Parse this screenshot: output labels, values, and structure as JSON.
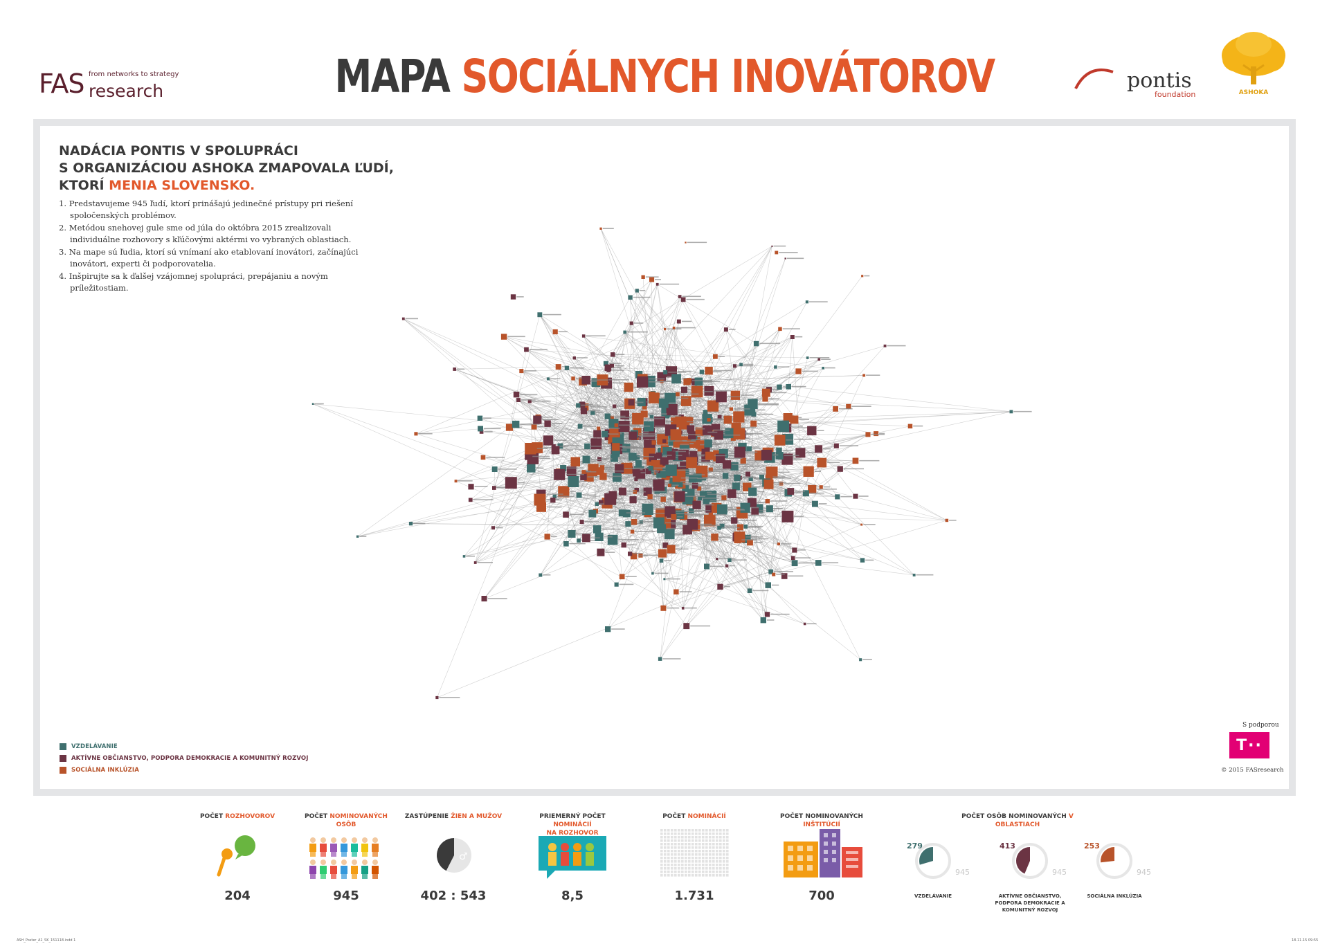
{
  "header": {
    "fas_main": "FAS",
    "fas_research": "research",
    "fas_tagline": "from networks to strategy",
    "title_part1": "MAPA ",
    "title_part2": "SOCIÁLNYCH INOVÁTOROV",
    "pontis_word": "pontis",
    "pontis_sub": "foundation",
    "ashoka_word": "ASHOKA"
  },
  "intro": {
    "line1": "NADÁCIA PONTIS V SPOLUPRÁCI",
    "line2": "S ORGANIZÁCIOU ASHOKA ZMAPOVALA ĽUDÍ,",
    "line3_prefix": "KTORÍ ",
    "line3_accent": "MENIA SLOVENSKO.",
    "points": [
      "1. Predstavujeme 945 ľudí, ktorí prinášajú jedinečné prístupy pri riešení spoločenských problémov.",
      "2. Metódou snehovej gule sme od júla do októbra 2015 zrealizovali individuálne rozhovory s kľúčovými aktérmi vo vybraných oblastiach.",
      "3. Na mape sú ľudia, ktorí sú vnímaní ako etablovaní inovátori, začínajúci inovátori, experti či podporovatelia.",
      "4. Inšpirujte sa k ďalšej vzájomnej spolupráci, prepájaniu a novým príležitostiam."
    ]
  },
  "legend": {
    "items": [
      {
        "label": "VZDELÁVANIE",
        "color": "#3f6f6e"
      },
      {
        "label": "AKTÍVNE OBČIANSTVO, PODPORA DEMOKRACIE A KOMUNITNÝ ROZVOJ",
        "color": "#6b3443"
      },
      {
        "label": "SOCIÁLNA INKLÚZIA",
        "color": "#b8532a"
      }
    ]
  },
  "support": {
    "label": "S podporou",
    "telekom_glyph": "T··",
    "copyright": "© 2015 FASresearch"
  },
  "stats": {
    "interviews": {
      "label_a": "POČET ",
      "label_b": "ROZHOVOROV",
      "value": "204"
    },
    "persons": {
      "label_a": "POČET ",
      "label_b": "NOMINOVANÝCH OSÔB",
      "value": "945"
    },
    "gender": {
      "label_a": "ZASTÚPENIE ",
      "label_b": "ŽIEN A MUŽOV",
      "value": "402 : 543"
    },
    "avg": {
      "label_a": "PRIEMERNÝ POČET ",
      "label_b": "NOMINÁCIÍ",
      "label_c": "NA ROZHOVOR",
      "value": "8,5"
    },
    "nominations": {
      "label_a": "POČET ",
      "label_b": "NOMINÁCIÍ",
      "value": "1.731"
    },
    "institutions": {
      "label_a": "POČET NOMINOVANÝCH ",
      "label_b": "INŠTITÚCIÍ",
      "value": "700"
    },
    "areas": {
      "label_a": "POČET OSÔB NOMINOVANÝCH ",
      "label_b": "V OBLASTIACH"
    }
  },
  "donuts": [
    {
      "value": 279,
      "total": 945,
      "value_text": "279",
      "total_text": "945",
      "caption": "VZDELÁVANIE",
      "color": "#3f6f6e"
    },
    {
      "value": 413,
      "total": 945,
      "value_text": "413",
      "total_text": "945",
      "caption": "AKTÍVNE OBČIANSTVO, PODPORA DEMOKRACIE A KOMUNITNÝ ROZVOJ",
      "color": "#6b3443"
    },
    {
      "value": 253,
      "total": 945,
      "value_text": "253",
      "total_text": "945",
      "caption": "SOCIÁLNA INKLÚZIA",
      "color": "#b8532a"
    }
  ],
  "footer": {
    "file": "ASH_Poster_A1_SK_151118.indd 1",
    "date": "18.11.15 09:55"
  }
}
